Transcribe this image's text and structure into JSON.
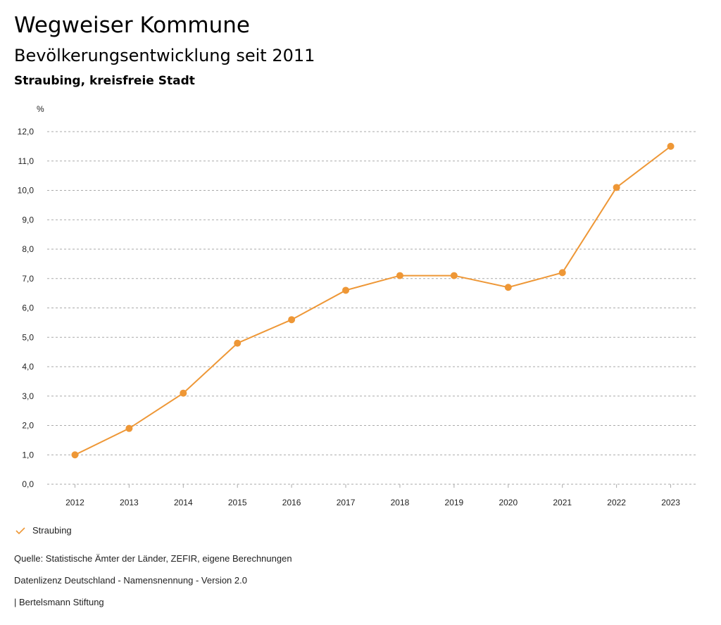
{
  "header": {
    "title": "Wegweiser Kommune",
    "subtitle": "Bevölkerungsentwicklung seit 2011",
    "region": "Straubing, kreisfreie Stadt"
  },
  "chart_data": {
    "type": "line",
    "ylabel": "%",
    "ylim": [
      0,
      12
    ],
    "yticks": [
      "0,0",
      "1,0",
      "2,0",
      "3,0",
      "4,0",
      "5,0",
      "6,0",
      "7,0",
      "8,0",
      "9,0",
      "10,0",
      "11,0",
      "12,0"
    ],
    "categories": [
      "2012",
      "2013",
      "2014",
      "2015",
      "2016",
      "2017",
      "2018",
      "2019",
      "2020",
      "2021",
      "2022",
      "2023"
    ],
    "grid": true,
    "series": [
      {
        "name": "Straubing",
        "color": "#ee9736",
        "values": [
          1.0,
          1.9,
          3.1,
          4.8,
          5.6,
          6.6,
          7.1,
          7.1,
          6.7,
          7.2,
          10.1,
          11.5
        ]
      }
    ],
    "legend": "bottom-left"
  },
  "footer": {
    "source": "Quelle: Statistische Ämter der Länder, ZEFIR, eigene Berechnungen",
    "license": "Datenlizenz Deutschland - Namensnennung - Version 2.0",
    "brand": "| Bertelsmann Stiftung"
  }
}
